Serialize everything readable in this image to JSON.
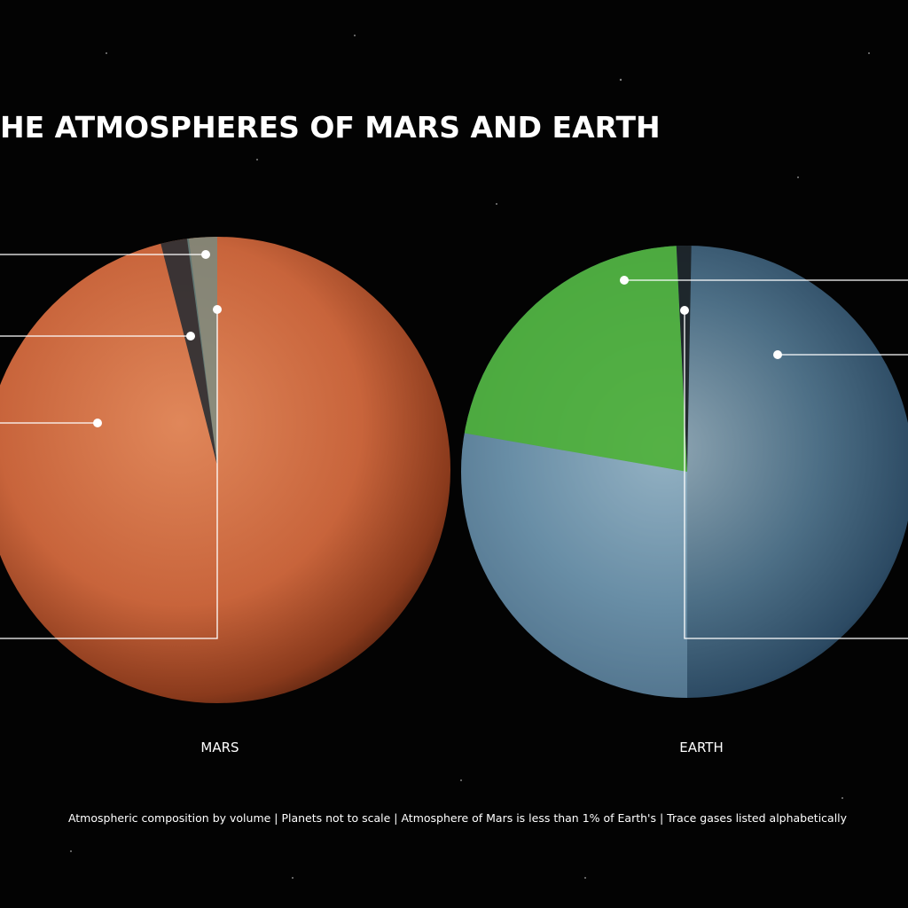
{
  "header": {
    "title": "HE ATMOSPHERES OF MARS AND EARTH"
  },
  "planets": [
    {
      "label": "MARS"
    },
    {
      "label": "EARTH"
    }
  ],
  "footnote": "Atmospheric composition by volume | Planets not to scale | Atmosphere of Mars is less than 1% of Earth's | Trace gases listed alphabetically"
}
